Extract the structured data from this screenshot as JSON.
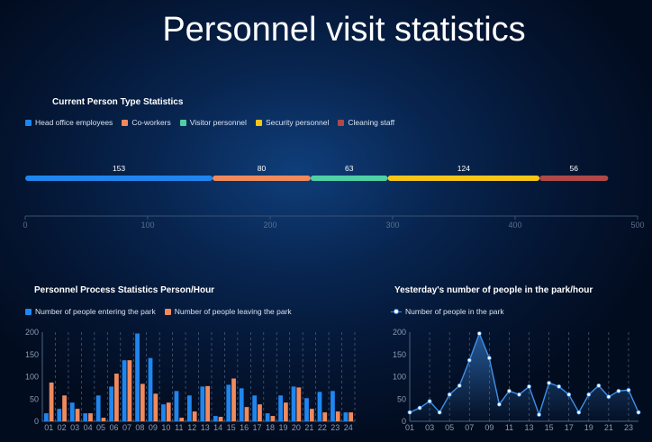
{
  "title": "Personnel visit statistics",
  "type_panel": {
    "title": "Current Person Type Statistics",
    "legend": [
      {
        "label": "Head office employees",
        "color": "#1f86f0"
      },
      {
        "label": "Co-workers",
        "color": "#f08a5d"
      },
      {
        "label": "Visitor personnel",
        "color": "#4fd0a5"
      },
      {
        "label": "Security personnel",
        "color": "#f5c518"
      },
      {
        "label": "Cleaning staff",
        "color": "#b04848"
      }
    ]
  },
  "process_panel": {
    "title": "Personnel Process Statistics Person/Hour",
    "legend": [
      {
        "label": "Number of people entering the park",
        "color": "#1f86f0"
      },
      {
        "label": "Number of people leaving the park",
        "color": "#f08a5d"
      }
    ]
  },
  "park_panel": {
    "title": "Yesterday's number of people in the park/hour",
    "legend": [
      {
        "label": "Number of people in the park",
        "color": "#3f8fe8"
      }
    ]
  },
  "chart_data": [
    {
      "type": "bar",
      "orientation": "horizontal-stacked",
      "title": "Current Person Type Statistics",
      "series": [
        {
          "name": "Head office employees",
          "values": [
            153
          ]
        },
        {
          "name": "Co-workers",
          "values": [
            80
          ]
        },
        {
          "name": "Visitor personnel",
          "values": [
            63
          ]
        },
        {
          "name": "Security personnel",
          "values": [
            124
          ]
        },
        {
          "name": "Cleaning staff",
          "values": [
            56
          ]
        }
      ],
      "xlim": [
        0,
        500
      ],
      "xticks": [
        "0",
        "100",
        "200",
        "300",
        "400",
        "500"
      ],
      "legend": "top-left"
    },
    {
      "type": "bar",
      "title": "Personnel Process Statistics Person/Hour",
      "categories": [
        "01",
        "02",
        "03",
        "04",
        "05",
        "06",
        "07",
        "08",
        "09",
        "10",
        "11",
        "12",
        "13",
        "14",
        "15",
        "16",
        "17",
        "18",
        "19",
        "20",
        "21",
        "22",
        "23",
        "24"
      ],
      "series": [
        {
          "name": "Number of people entering the park",
          "values": [
            18,
            28,
            42,
            18,
            58,
            78,
            137,
            197,
            142,
            38,
            68,
            58,
            78,
            12,
            82,
            74,
            58,
            18,
            58,
            78,
            52,
            66,
            68,
            20
          ]
        },
        {
          "name": "Number of people leaving the park",
          "values": [
            87,
            58,
            28,
            18,
            8,
            107,
            137,
            84,
            62,
            42,
            8,
            22,
            79,
            10,
            96,
            32,
            38,
            12,
            42,
            76,
            28,
            20,
            22,
            20
          ]
        }
      ],
      "ylim": [
        0,
        200
      ],
      "yticks": [
        "0",
        "50",
        "100",
        "150",
        "200"
      ],
      "grid": true,
      "legend": "top-left"
    },
    {
      "type": "line",
      "title": "Yesterday's number of people in the park/hour",
      "categories": [
        "01",
        "02",
        "03",
        "04",
        "05",
        "06",
        "07",
        "08",
        "09",
        "10",
        "11",
        "12",
        "13",
        "14",
        "15",
        "16",
        "17",
        "18",
        "19",
        "20",
        "21",
        "22",
        "23",
        "24"
      ],
      "xticks": [
        "01",
        "03",
        "05",
        "07",
        "09",
        "11",
        "13",
        "15",
        "17",
        "19",
        "21",
        "23"
      ],
      "series": [
        {
          "name": "Number of people in the park",
          "values": [
            20,
            30,
            45,
            20,
            60,
            80,
            137,
            197,
            142,
            38,
            68,
            60,
            78,
            15,
            86,
            78,
            60,
            20,
            60,
            80,
            55,
            68,
            70,
            20
          ]
        }
      ],
      "ylim": [
        0,
        200
      ],
      "yticks": [
        "0",
        "50",
        "100",
        "150",
        "200"
      ],
      "grid": true,
      "legend": "top-left"
    }
  ]
}
